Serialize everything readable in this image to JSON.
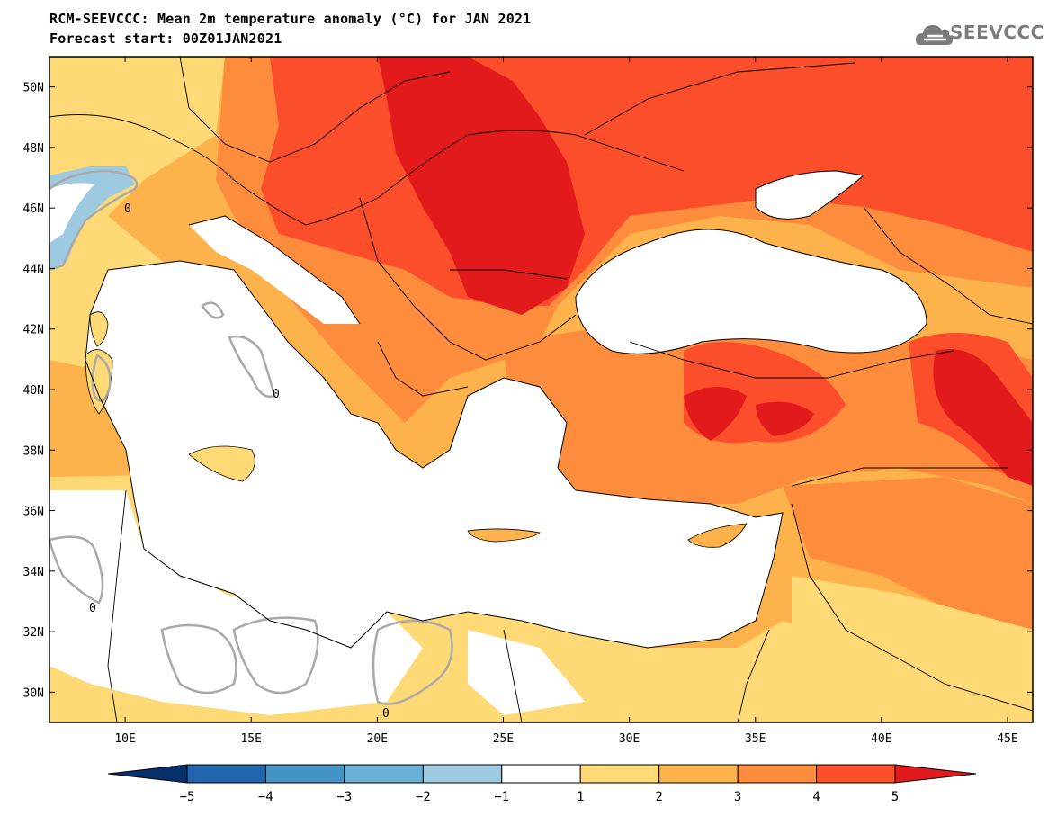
{
  "title_line1": "RCM-SEEVCCC: Mean 2m temperature anomaly (°C) for JAN 2021",
  "title_line2": "Forecast start: 00Z01JAN2021",
  "logo_text": "SEEVCCC",
  "lat_labels": [
    "50N",
    "48N",
    "46N",
    "44N",
    "42N",
    "40N",
    "38N",
    "36N",
    "34N",
    "32N",
    "30N"
  ],
  "lat_values": [
    50,
    48,
    46,
    44,
    42,
    40,
    38,
    36,
    34,
    32,
    30
  ],
  "lon_labels": [
    "10E",
    "15E",
    "20E",
    "25E",
    "30E",
    "35E",
    "40E",
    "45E"
  ],
  "lon_values": [
    10,
    15,
    20,
    25,
    30,
    35,
    40,
    45
  ],
  "colorbar": {
    "labels": [
      "-5",
      "-4",
      "-3",
      "-2",
      "-1",
      "1",
      "2",
      "3",
      "4",
      "5"
    ],
    "colors": [
      "#08306b",
      "#2166ac",
      "#4393c3",
      "#6baed6",
      "#9ecae1",
      "#ffffff",
      "#fed976",
      "#feb24c",
      "#fd8d3c",
      "#fc4e2a",
      "#e31a1c"
    ]
  },
  "contour_label": "0",
  "colors": {
    "anom_1_2": "#fed976",
    "anom_2_3": "#feb24c",
    "anom_3_4": "#fd8d3c",
    "anom_4_5": "#fc4e2a",
    "anom_5_plus": "#e31a1c",
    "anom_m1_m2": "#9ecae1",
    "sea": "#ffffff",
    "contour": "#a9a9a9"
  }
}
